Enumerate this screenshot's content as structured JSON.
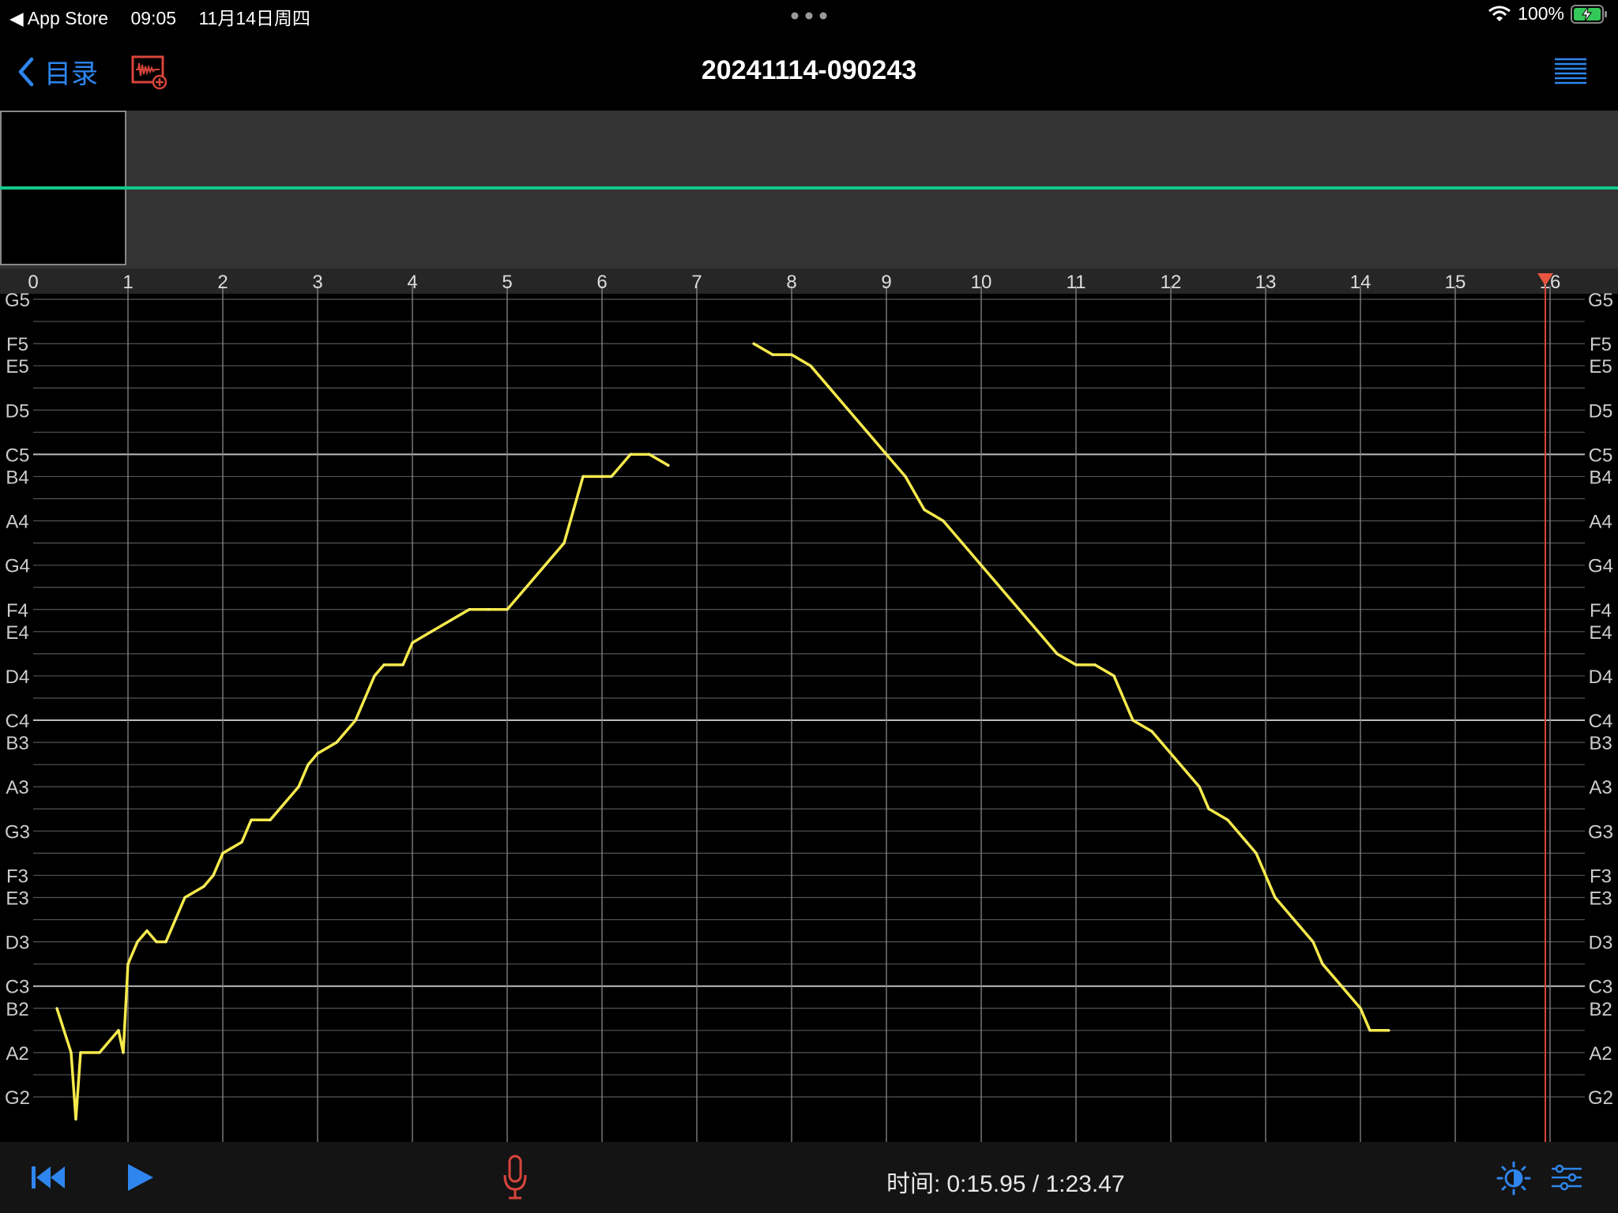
{
  "status_bar": {
    "back_app": "◀ App Store",
    "time": "09:05",
    "date": "11月14日周四",
    "battery": "100%"
  },
  "nav": {
    "back_label": "目录",
    "title": "20241114-090243"
  },
  "chart_data": {
    "type": "line",
    "x_ticks": [
      "0",
      "1",
      "2",
      "3",
      "4",
      "5",
      "6",
      "7",
      "8",
      "9",
      "10",
      "11",
      "12",
      "13",
      "14",
      "15",
      "16"
    ],
    "y_labels": [
      "G5",
      "F5",
      "E5",
      "D5",
      "C5",
      "B4",
      "A4",
      "G4",
      "F4",
      "E4",
      "D4",
      "C4",
      "B3",
      "A3",
      "G3",
      "F3",
      "E3",
      "D3",
      "C3",
      "B2",
      "A2",
      "G2"
    ],
    "xlim": [
      0,
      16.5
    ],
    "playhead": 15.95,
    "series": [
      {
        "values": [
          [
            0.25,
            47
          ],
          [
            0.4,
            45
          ],
          [
            0.45,
            42
          ],
          [
            0.5,
            45
          ],
          [
            0.7,
            45
          ],
          [
            0.9,
            46
          ],
          [
            0.95,
            45
          ],
          [
            1.0,
            49
          ],
          [
            1.1,
            50
          ],
          [
            1.2,
            50.5
          ],
          [
            1.3,
            50
          ],
          [
            1.4,
            50
          ],
          [
            1.5,
            51
          ],
          [
            1.6,
            52
          ],
          [
            1.8,
            52.5
          ],
          [
            1.9,
            53
          ],
          [
            2.0,
            54
          ],
          [
            2.2,
            54.5
          ],
          [
            2.3,
            55.5
          ],
          [
            2.5,
            55.5
          ],
          [
            2.6,
            56
          ],
          [
            2.8,
            57
          ],
          [
            2.9,
            58
          ],
          [
            3.0,
            58.5
          ],
          [
            3.2,
            59
          ],
          [
            3.4,
            60
          ],
          [
            3.5,
            61
          ],
          [
            3.6,
            62
          ],
          [
            3.7,
            62.5
          ],
          [
            3.9,
            62.5
          ],
          [
            4.0,
            63.5
          ],
          [
            4.2,
            64
          ],
          [
            4.4,
            64.5
          ],
          [
            4.6,
            65
          ],
          [
            4.8,
            65
          ],
          [
            5.0,
            65
          ],
          [
            5.2,
            66
          ],
          [
            5.4,
            67
          ],
          [
            5.6,
            68
          ],
          [
            5.7,
            69.5
          ],
          [
            5.8,
            71
          ],
          [
            6.0,
            71
          ],
          [
            6.1,
            71
          ],
          [
            6.3,
            72
          ],
          [
            6.5,
            72
          ],
          [
            6.7,
            71.5
          ],
          [
            7.6,
            77
          ],
          [
            7.8,
            76.5
          ],
          [
            8.0,
            76.5
          ],
          [
            8.2,
            76
          ],
          [
            8.4,
            75
          ],
          [
            8.6,
            74
          ],
          [
            8.8,
            73
          ],
          [
            9.0,
            72
          ],
          [
            9.2,
            71
          ],
          [
            9.4,
            69.5
          ],
          [
            9.6,
            69
          ],
          [
            9.8,
            68
          ],
          [
            10.0,
            67
          ],
          [
            10.2,
            66
          ],
          [
            10.4,
            65
          ],
          [
            10.6,
            64
          ],
          [
            10.8,
            63
          ],
          [
            11.0,
            62.5
          ],
          [
            11.2,
            62.5
          ],
          [
            11.4,
            62
          ],
          [
            11.6,
            60
          ],
          [
            11.8,
            59.5
          ],
          [
            11.9,
            59
          ],
          [
            12.1,
            58
          ],
          [
            12.3,
            57
          ],
          [
            12.4,
            56
          ],
          [
            12.6,
            55.5
          ],
          [
            12.8,
            54.5
          ],
          [
            12.9,
            54
          ],
          [
            13.1,
            52
          ],
          [
            13.3,
            51
          ],
          [
            13.5,
            50
          ],
          [
            13.6,
            49
          ],
          [
            13.8,
            48
          ],
          [
            14.0,
            47
          ],
          [
            14.1,
            46
          ],
          [
            14.3,
            46
          ]
        ]
      }
    ]
  },
  "transport": {
    "time_label": "时间:",
    "time_value": "0:15.95 / 1:23.47"
  }
}
